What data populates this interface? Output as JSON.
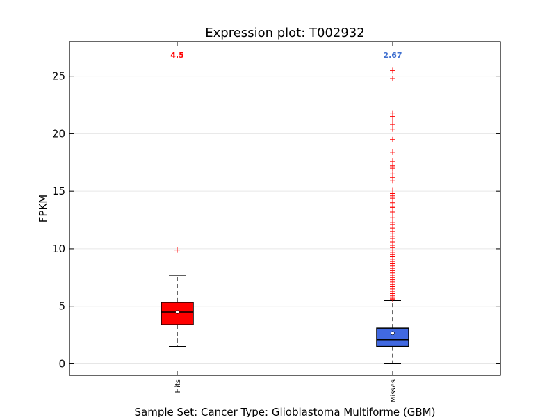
{
  "chart_data": {
    "type": "boxplot",
    "title": "Expression plot: T002932",
    "xlabel": "Sample Set: Cancer Type: Glioblastoma Multiforme (GBM)",
    "ylabel": "FPKM",
    "ylim": [
      -1,
      28
    ],
    "yticks": [
      0,
      5,
      10,
      15,
      20,
      25
    ],
    "grid": true,
    "categories": [
      "Hits",
      "Misses"
    ],
    "boxes": [
      {
        "category": "Hits",
        "color": "#ff0000",
        "mean_label": "4.5",
        "label_color": "#ff0000",
        "q1": 3.4,
        "median": 4.5,
        "q3": 5.35,
        "whisker_low": 1.5,
        "whisker_high": 7.7,
        "mean": 4.5,
        "outliers": [
          9.9
        ]
      },
      {
        "category": "Misses",
        "color": "#4169e1",
        "mean_label": "2.67",
        "label_color": "#3f6fcf",
        "q1": 1.5,
        "median": 2.1,
        "q3": 3.1,
        "whisker_low": 0.0,
        "whisker_high": 5.5,
        "mean": 2.67,
        "outliers": [
          25.5,
          24.8,
          21.8,
          21.5,
          21.2,
          20.8,
          20.4,
          19.5,
          18.4,
          17.6,
          17.2,
          17.1,
          17.0,
          16.5,
          16.2,
          15.9,
          15.1,
          14.8,
          14.6,
          14.4,
          14.0,
          13.7,
          13.6,
          13.2,
          12.7,
          12.5,
          12.3,
          12.1,
          11.8,
          11.5,
          11.3,
          11.1,
          10.9,
          10.6,
          10.3,
          10.1,
          9.9,
          9.7,
          9.5,
          9.3,
          9.1,
          8.9,
          8.7,
          8.5,
          8.3,
          8.1,
          7.9,
          7.7,
          7.5,
          7.3,
          7.1,
          6.9,
          6.7,
          6.5,
          6.3,
          6.1,
          5.9,
          5.8,
          5.7,
          5.6
        ]
      }
    ]
  },
  "colors": {
    "outlier": "#ff0000",
    "axis": "#000000",
    "grid": "#e6e6e6"
  }
}
